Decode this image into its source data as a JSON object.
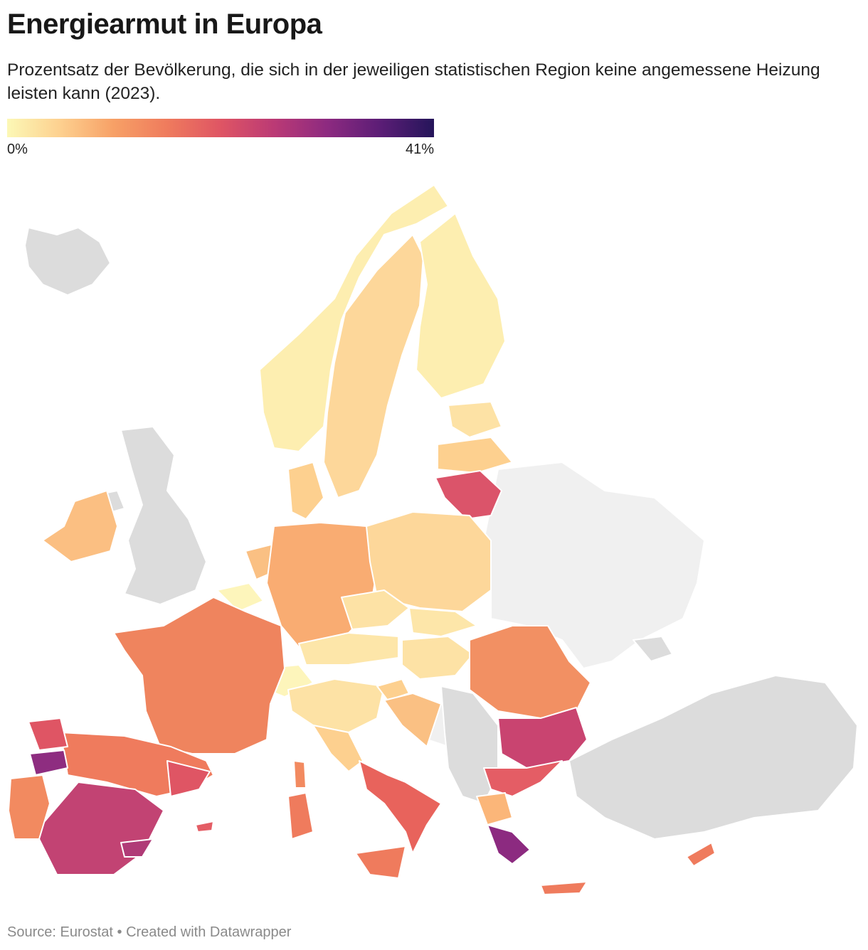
{
  "header": {
    "title": "Energiearmut in Europa",
    "subtitle": "Prozentsatz der Bevölkerung, die sich in der jeweiligen statistischen Region keine angemessene Heizung leisten kann (2023)."
  },
  "legend": {
    "min_label": "0%",
    "max_label": "41%",
    "min_value": 0,
    "max_value": 41,
    "gradient": [
      "#fcf8b6",
      "#fdd08f",
      "#f7a066",
      "#ef7b5d",
      "#df5564",
      "#bb3a75",
      "#8d2a80",
      "#5b1d76",
      "#25155a"
    ]
  },
  "map": {
    "no_data_color": "#dcdcdc",
    "outside_color": "#f0f0f0",
    "border_color": "#ffffff"
  },
  "footer": {
    "source": "Source: Eurostat • Created with Datawrapper"
  }
}
